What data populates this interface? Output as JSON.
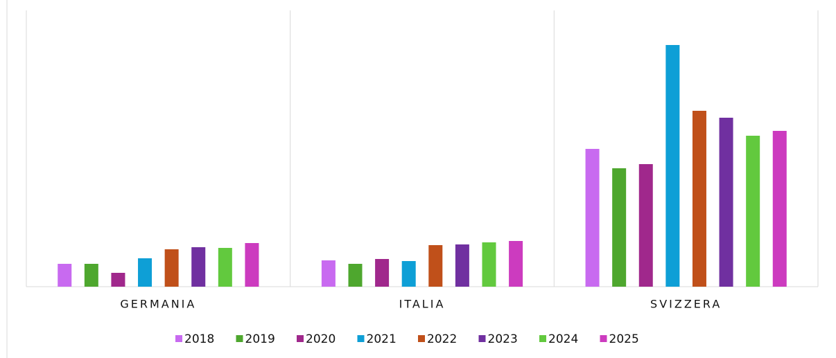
{
  "chart_data": {
    "type": "bar",
    "categories": [
      "GERMANIA",
      "ITALIA",
      "SVIZZERA"
    ],
    "ylim": [
      0,
      399
    ],
    "series": [
      {
        "name": "2018",
        "color": "#c86af0",
        "values": [
          33,
          38,
          199
        ]
      },
      {
        "name": "2019",
        "color": "#4ea72e",
        "values": [
          33,
          33,
          171
        ]
      },
      {
        "name": "2020",
        "color": "#a0288c",
        "values": [
          20,
          40,
          177
        ]
      },
      {
        "name": "2021",
        "color": "#0e9fd6",
        "values": [
          41,
          37,
          349
        ]
      },
      {
        "name": "2022",
        "color": "#c0501a",
        "values": [
          54,
          60,
          254
        ]
      },
      {
        "name": "2023",
        "color": "#7030a0",
        "values": [
          57,
          61,
          244
        ]
      },
      {
        "name": "2024",
        "color": "#62c93e",
        "values": [
          56,
          64,
          218
        ]
      },
      {
        "name": "2025",
        "color": "#cc3bbf",
        "values": [
          63,
          66,
          225
        ]
      }
    ]
  }
}
